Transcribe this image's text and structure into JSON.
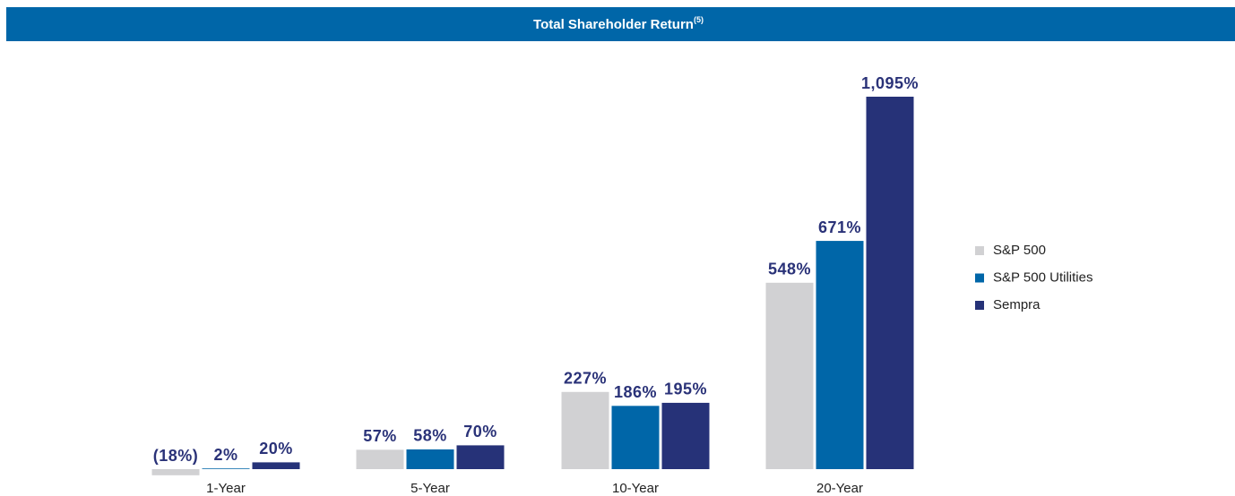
{
  "chart_data": {
    "type": "bar",
    "title": "Total Shareholder Return",
    "title_note": "(5)",
    "categories": [
      "1-Year",
      "5-Year",
      "10-Year",
      "20-Year"
    ],
    "series": [
      {
        "name": "S&P 500",
        "color": "#d1d1d3",
        "values": [
          -18,
          57,
          227,
          548
        ],
        "value_labels": [
          "(18%)",
          "57%",
          "227%",
          "548%"
        ]
      },
      {
        "name": "S&P 500 Utilities",
        "color": "#0066a8",
        "values": [
          2,
          58,
          186,
          671
        ],
        "value_labels": [
          "2%",
          "58%",
          "186%",
          "671%"
        ]
      },
      {
        "name": "Sempra",
        "color": "#263278",
        "values": [
          20,
          70,
          195,
          1095
        ],
        "value_labels": [
          "20%",
          "70%",
          "195%",
          "1,095%"
        ]
      }
    ],
    "legend": "right"
  }
}
